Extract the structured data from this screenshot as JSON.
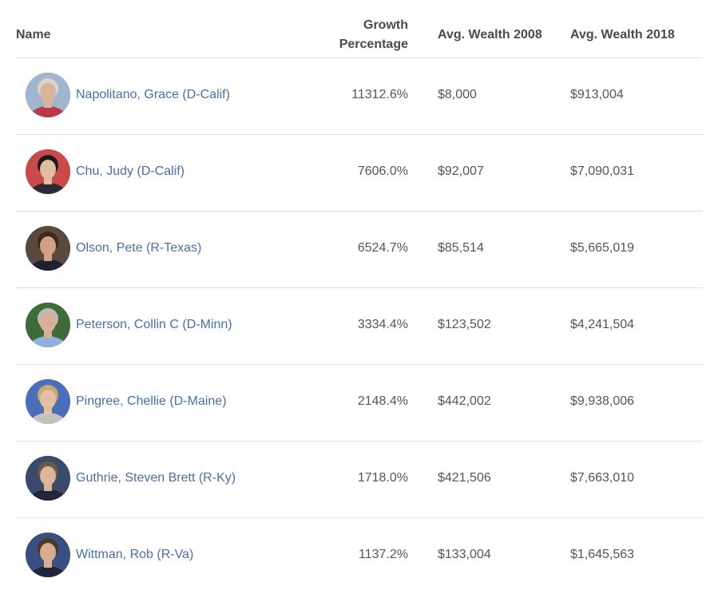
{
  "table": {
    "headers": {
      "name": "Name",
      "growth_line1": "Growth",
      "growth_line2": "Percentage",
      "wealth_2008": "Avg. Wealth 2008",
      "wealth_2018": "Avg. Wealth 2018"
    },
    "rows": [
      {
        "name": "Napolitano, Grace (D-Calif)",
        "growth": "11312.6%",
        "wealth_2008": "$8,000",
        "wealth_2018": "$913,004",
        "avatar_bg": "#9fb6cc",
        "avatar_skin": "#d9b59b",
        "avatar_hair": "#d8d4cf",
        "avatar_cloth": "#b83a4a"
      },
      {
        "name": "Chu, Judy (D-Calif)",
        "growth": "7606.0%",
        "wealth_2008": "$92,007",
        "wealth_2018": "$7,090,031",
        "avatar_bg": "#c94a4a",
        "avatar_skin": "#e0bca0",
        "avatar_hair": "#1e1a1a",
        "avatar_cloth": "#2a2a3a"
      },
      {
        "name": "Olson, Pete (R-Texas)",
        "growth": "6524.7%",
        "wealth_2008": "$85,514",
        "wealth_2018": "$5,665,019",
        "avatar_bg": "#5a4a3e",
        "avatar_skin": "#d2a084",
        "avatar_hair": "#3a2a20",
        "avatar_cloth": "#1e2230"
      },
      {
        "name": "Peterson, Collin C (D-Minn)",
        "growth": "3334.4%",
        "wealth_2008": "$123,502",
        "wealth_2018": "$4,241,504",
        "avatar_bg": "#3f6a3a",
        "avatar_skin": "#d8b098",
        "avatar_hair": "#bfbab2",
        "avatar_cloth": "#8fb0d8"
      },
      {
        "name": "Pingree, Chellie (D-Maine)",
        "growth": "2148.4%",
        "wealth_2008": "$442,002",
        "wealth_2018": "$9,938,006",
        "avatar_bg": "#4a6fb8",
        "avatar_skin": "#e4bfa4",
        "avatar_hair": "#c9a878",
        "avatar_cloth": "#c8c2ba"
      },
      {
        "name": "Guthrie, Steven Brett (R-Ky)",
        "growth": "1718.0%",
        "wealth_2008": "$421,506",
        "wealth_2018": "$7,663,010",
        "avatar_bg": "#3a4a6a",
        "avatar_skin": "#dcb49c",
        "avatar_hair": "#6a5a4a",
        "avatar_cloth": "#22263a"
      },
      {
        "name": "Wittman, Rob (R-Va)",
        "growth": "1137.2%",
        "wealth_2008": "$133,004",
        "wealth_2018": "$1,645,563",
        "avatar_bg": "#3a5080",
        "avatar_skin": "#d8ac90",
        "avatar_hair": "#4a3a2e",
        "avatar_cloth": "#22263a"
      }
    ]
  }
}
